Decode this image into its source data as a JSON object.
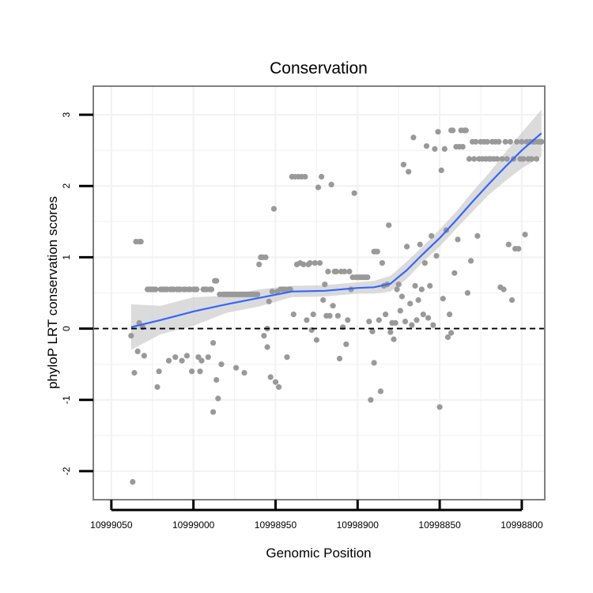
{
  "chart_data": {
    "type": "scatter",
    "title": "Conservation",
    "xlabel": "Genomic Position",
    "ylabel": "phyloP LRT conservation scores",
    "x_reversed": true,
    "xlim": [
      10999061,
      10998786
    ],
    "ylim": [
      -2.4,
      3.4
    ],
    "x_ticks": [
      10999050,
      10999000,
      10998950,
      10998900,
      10998850,
      10998800
    ],
    "x_tick_labels": [
      "10999050",
      "10999000",
      "10998950",
      "10998900",
      "10998850",
      "10998800"
    ],
    "y_ticks": [
      -2,
      -1,
      0,
      1,
      2,
      3
    ],
    "y_tick_labels": [
      "-2",
      "-1",
      "0",
      "1",
      "2",
      "3"
    ],
    "reference_line": {
      "y": 0,
      "style": "dashed"
    },
    "colors": {
      "points": "#999999",
      "smooth": "#3366ff",
      "ribbon": "#cccccc",
      "grid": "#f2f2f2",
      "frame": "#7f7f7f",
      "ref": "#000000"
    },
    "grid": true,
    "points": [
      [
        10999038,
        -0.1
      ],
      [
        10999037,
        -2.15
      ],
      [
        10999036,
        -0.62
      ],
      [
        10999035,
        1.22
      ],
      [
        10999034,
        -0.32
      ],
      [
        10999033,
        1.22
      ],
      [
        10999033,
        0.08
      ],
      [
        10999032,
        1.22
      ],
      [
        10999031,
        0.02
      ],
      [
        10999030,
        -0.38
      ],
      [
        10999028,
        0.55
      ],
      [
        10999027,
        0.55
      ],
      [
        10999026,
        0.55
      ],
      [
        10999025,
        0.55
      ],
      [
        10999024,
        0.55
      ],
      [
        10999023,
        0.55
      ],
      [
        10999022,
        -0.82
      ],
      [
        10999021,
        -0.6
      ],
      [
        10999020,
        0.55
      ],
      [
        10999019,
        0.55
      ],
      [
        10999018,
        0.55
      ],
      [
        10999017,
        0.55
      ],
      [
        10999016,
        0.55
      ],
      [
        10999015,
        -0.45
      ],
      [
        10999014,
        0.55
      ],
      [
        10999013,
        0.55
      ],
      [
        10999012,
        0.55
      ],
      [
        10999011,
        -0.4
      ],
      [
        10999010,
        0.55
      ],
      [
        10999009,
        0.55
      ],
      [
        10999008,
        0.55
      ],
      [
        10999007,
        -0.45
      ],
      [
        10999006,
        0.55
      ],
      [
        10999005,
        0.55
      ],
      [
        10999004,
        -0.38
      ],
      [
        10999003,
        0.55
      ],
      [
        10999002,
        0.55
      ],
      [
        10999001,
        -0.6
      ],
      [
        10999000,
        0.55
      ],
      [
        10998999,
        0.55
      ],
      [
        10998998,
        0.55
      ],
      [
        10998997,
        -0.4
      ],
      [
        10998996,
        -0.6
      ],
      [
        10998995,
        -0.45
      ],
      [
        10998994,
        0.55
      ],
      [
        10998993,
        0.55
      ],
      [
        10998992,
        0.55
      ],
      [
        10998991,
        -0.4
      ],
      [
        10998990,
        0.55
      ],
      [
        10998989,
        0.55
      ],
      [
        10998988,
        -1.17
      ],
      [
        10998988,
        -0.2
      ],
      [
        10998987,
        0.67
      ],
      [
        10998986,
        0.67
      ],
      [
        10998986,
        -0.72
      ],
      [
        10998985,
        -0.98
      ],
      [
        10998984,
        0.48
      ],
      [
        10998983,
        -0.5
      ],
      [
        10998982,
        0.48
      ],
      [
        10998981,
        0.48
      ],
      [
        10998980,
        0.48
      ],
      [
        10998979,
        0.48
      ],
      [
        10998978,
        0.48
      ],
      [
        10998977,
        0.48
      ],
      [
        10998976,
        0.48
      ],
      [
        10998975,
        0.48
      ],
      [
        10998974,
        -0.55
      ],
      [
        10998974,
        0.48
      ],
      [
        10998973,
        0.48
      ],
      [
        10998972,
        0.48
      ],
      [
        10998971,
        0.48
      ],
      [
        10998970,
        0.48
      ],
      [
        10998969,
        -0.62
      ],
      [
        10998969,
        0.48
      ],
      [
        10998968,
        0.48
      ],
      [
        10998967,
        0.48
      ],
      [
        10998966,
        0.48
      ],
      [
        10998965,
        0.48
      ],
      [
        10998964,
        0.48
      ],
      [
        10998963,
        0.48
      ],
      [
        10998962,
        0.48
      ],
      [
        10998961,
        0.48
      ],
      [
        10998960,
        0.9
      ],
      [
        10998959,
        1.0
      ],
      [
        10998958,
        1.0
      ],
      [
        10998957,
        -0.1
      ],
      [
        10998956,
        1.0
      ],
      [
        10998955,
        0.0
      ],
      [
        10998955,
        -0.26
      ],
      [
        10998954,
        0.38
      ],
      [
        10998953,
        -0.68
      ],
      [
        10998952,
        0.52
      ],
      [
        10998951,
        1.68
      ],
      [
        10998950,
        -0.75
      ],
      [
        10998949,
        0.52
      ],
      [
        10998948,
        -0.82
      ],
      [
        10998947,
        0.55
      ],
      [
        10998946,
        0.55
      ],
      [
        10998945,
        0.55
      ],
      [
        10998944,
        0.55
      ],
      [
        10998943,
        -0.4
      ],
      [
        10998942,
        0.55
      ],
      [
        10998941,
        0.55
      ],
      [
        10998940,
        2.13
      ],
      [
        10998939,
        0.2
      ],
      [
        10998938,
        2.13
      ],
      [
        10998937,
        0.9
      ],
      [
        10998936,
        2.13
      ],
      [
        10998935,
        0.92
      ],
      [
        10998934,
        2.13
      ],
      [
        10998933,
        0.9
      ],
      [
        10998932,
        2.13
      ],
      [
        10998931,
        0.12
      ],
      [
        10998930,
        0.9
      ],
      [
        10998929,
        0.92
      ],
      [
        10998928,
        -0.02
      ],
      [
        10998927,
        0.2
      ],
      [
        10998926,
        0.92
      ],
      [
        10998925,
        -0.16
      ],
      [
        10998924,
        1.98
      ],
      [
        10998923,
        0.92
      ],
      [
        10998922,
        2.13
      ],
      [
        10998921,
        0.4
      ],
      [
        10998920,
        0.62
      ],
      [
        10998919,
        0.18
      ],
      [
        10998918,
        0.8
      ],
      [
        10998917,
        0.18
      ],
      [
        10998916,
        2.02
      ],
      [
        10998915,
        0.32
      ],
      [
        10998914,
        0.8
      ],
      [
        10998913,
        0.8
      ],
      [
        10998912,
        0.18
      ],
      [
        10998911,
        -0.42
      ],
      [
        10998910,
        0.8
      ],
      [
        10998909,
        0.02
      ],
      [
        10998908,
        0.8
      ],
      [
        10998907,
        -0.22
      ],
      [
        10998906,
        0.12
      ],
      [
        10998905,
        0.8
      ],
      [
        10998904,
        0.55
      ],
      [
        10998903,
        0.72
      ],
      [
        10998902,
        1.9
      ],
      [
        10998901,
        0.72
      ],
      [
        10998900,
        0.72
      ],
      [
        10998899,
        0.72
      ],
      [
        10998898,
        0.72
      ],
      [
        10998897,
        0.72
      ],
      [
        10998896,
        0.72
      ],
      [
        10998895,
        0.72
      ],
      [
        10998894,
        0.72
      ],
      [
        10998893,
        0.1
      ],
      [
        10998892,
        -1.0
      ],
      [
        10998891,
        -0.04
      ],
      [
        10998890,
        -0.48
      ],
      [
        10998890,
        1.08
      ],
      [
        10998889,
        1.08
      ],
      [
        10998888,
        1.08
      ],
      [
        10998887,
        0.12
      ],
      [
        10998886,
        -0.88
      ],
      [
        10998885,
        0.92
      ],
      [
        10998884,
        0.6
      ],
      [
        10998883,
        0.2
      ],
      [
        10998882,
        0.62
      ],
      [
        10998881,
        1.45
      ],
      [
        10998880,
        -0.05
      ],
      [
        10998879,
        0.08
      ],
      [
        10998878,
        -0.15
      ],
      [
        10998877,
        0.08
      ],
      [
        10998876,
        0.55
      ],
      [
        10998875,
        0.62
      ],
      [
        10998874,
        0.25
      ],
      [
        10998873,
        0.45
      ],
      [
        10998872,
        2.3
      ],
      [
        10998871,
        0.1
      ],
      [
        10998870,
        1.15
      ],
      [
        10998869,
        2.2
      ],
      [
        10998868,
        0.35
      ],
      [
        10998867,
        0.05
      ],
      [
        10998866,
        2.68
      ],
      [
        10998865,
        0.6
      ],
      [
        10998864,
        0.12
      ],
      [
        10998863,
        0.4
      ],
      [
        10998862,
        1.18
      ],
      [
        10998861,
        0.55
      ],
      [
        10998860,
        0.2
      ],
      [
        10998859,
        0.92
      ],
      [
        10998858,
        2.56
      ],
      [
        10998857,
        0.15
      ],
      [
        10998856,
        0.6
      ],
      [
        10998855,
        1.3
      ],
      [
        10998854,
        0.05
      ],
      [
        10998853,
        2.52
      ],
      [
        10998852,
        1.02
      ],
      [
        10998851,
        2.76
      ],
      [
        10998850,
        -1.1
      ],
      [
        10998849,
        2.22
      ],
      [
        10998848,
        0.42
      ],
      [
        10998847,
        2.52
      ],
      [
        10998846,
        1.38
      ],
      [
        10998845,
        -0.12
      ],
      [
        10998844,
        0.2
      ],
      [
        10998843,
        2.78
      ],
      [
        10998843,
        -0.06
      ],
      [
        10998842,
        2.78
      ],
      [
        10998841,
        0.78
      ],
      [
        10998840,
        2.55
      ],
      [
        10998839,
        1.25
      ],
      [
        10998838,
        2.55
      ],
      [
        10998837,
        2.78
      ],
      [
        10998836,
        2.55
      ],
      [
        10998835,
        2.78
      ],
      [
        10998834,
        2.78
      ],
      [
        10998833,
        0.5
      ],
      [
        10998832,
        2.38
      ],
      [
        10998831,
        0.95
      ],
      [
        10998830,
        2.62
      ],
      [
        10998829,
        2.38
      ],
      [
        10998828,
        2.62
      ],
      [
        10998827,
        1.3
      ],
      [
        10998826,
        2.38
      ],
      [
        10998825,
        2.62
      ],
      [
        10998824,
        2.38
      ],
      [
        10998823,
        2.62
      ],
      [
        10998822,
        2.38
      ],
      [
        10998821,
        2.62
      ],
      [
        10998820,
        2.38
      ],
      [
        10998819,
        2.38
      ],
      [
        10998818,
        2.62
      ],
      [
        10998817,
        2.38
      ],
      [
        10998816,
        2.62
      ],
      [
        10998815,
        2.38
      ],
      [
        10998814,
        2.62
      ],
      [
        10998813,
        0.58
      ],
      [
        10998812,
        2.38
      ],
      [
        10998811,
        0.55
      ],
      [
        10998810,
        2.62
      ],
      [
        10998809,
        2.38
      ],
      [
        10998808,
        1.18
      ],
      [
        10998807,
        2.62
      ],
      [
        10998806,
        0.4
      ],
      [
        10998805,
        2.38
      ],
      [
        10998804,
        1.12
      ],
      [
        10998803,
        2.62
      ],
      [
        10998802,
        1.12
      ],
      [
        10998801,
        2.38
      ],
      [
        10998800,
        2.62
      ],
      [
        10998799,
        2.38
      ],
      [
        10998798,
        1.32
      ],
      [
        10998797,
        2.62
      ],
      [
        10998796,
        2.38
      ],
      [
        10998795,
        2.62
      ],
      [
        10998794,
        2.38
      ],
      [
        10998793,
        2.62
      ],
      [
        10998792,
        2.62
      ],
      [
        10998791,
        2.38
      ],
      [
        10998790,
        2.62
      ],
      [
        10998789,
        2.62
      ],
      [
        10998788,
        2.62
      ]
    ],
    "smooth": {
      "method": "loess",
      "x": [
        10999038,
        10999020,
        10999000,
        10998980,
        10998960,
        10998940,
        10998920,
        10998900,
        10998890,
        10998880,
        10998870,
        10998860,
        10998850,
        10998840,
        10998830,
        10998820,
        10998810,
        10998800,
        10998788
      ],
      "y": [
        0.02,
        0.12,
        0.24,
        0.34,
        0.43,
        0.52,
        0.53,
        0.57,
        0.58,
        0.63,
        0.82,
        1.05,
        1.27,
        1.52,
        1.78,
        2.03,
        2.27,
        2.5,
        2.74
      ],
      "lower": [
        -0.3,
        -0.08,
        0.04,
        0.22,
        0.31,
        0.44,
        0.45,
        0.49,
        0.49,
        0.52,
        0.7,
        0.94,
        1.15,
        1.4,
        1.64,
        1.88,
        2.07,
        2.25,
        2.41
      ],
      "upper": [
        0.34,
        0.32,
        0.44,
        0.46,
        0.55,
        0.6,
        0.61,
        0.65,
        0.67,
        0.74,
        0.94,
        1.16,
        1.39,
        1.64,
        1.92,
        2.18,
        2.47,
        2.75,
        3.07
      ]
    }
  }
}
